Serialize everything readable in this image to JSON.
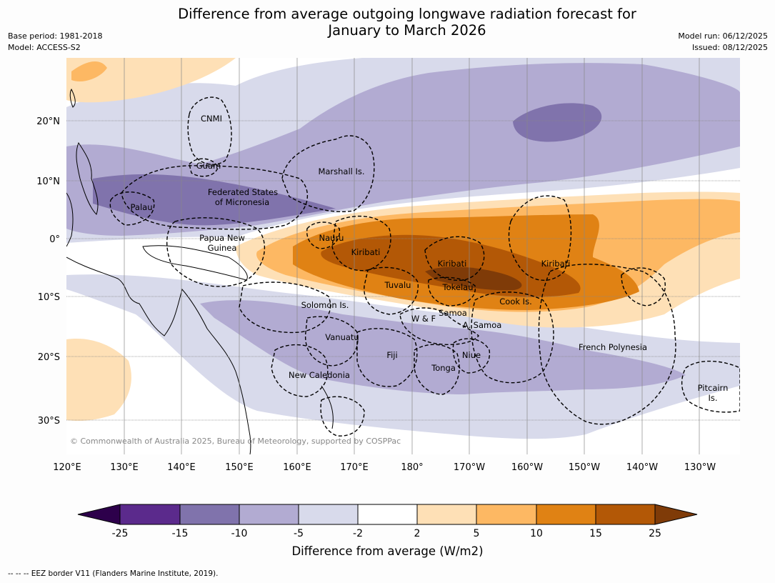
{
  "title": {
    "line1": "Difference from average outgoing longwave radiation forecast for",
    "line2": "January to March 2026"
  },
  "meta": {
    "base_period": "Base period: 1981-2018",
    "model": "Model: ACCESS-S2",
    "model_run": "Model run: 06/12/2025",
    "issued": "Issued: 08/12/2025"
  },
  "map": {
    "lon_labels": [
      "120°E",
      "130°E",
      "140°E",
      "150°E",
      "160°E",
      "170°E",
      "180°",
      "170°W",
      "160°W",
      "150°W",
      "140°W",
      "130°W"
    ],
    "lat_labels": [
      "20°N",
      "10°N",
      "0°",
      "10°S",
      "20°S",
      "30°S"
    ],
    "regions": [
      "CNMI",
      "Guam",
      "Marshall Is.",
      "Federated States",
      "of Micronesia",
      "Palau",
      "Papua New",
      "Guinea",
      "Nauru",
      "Kiribati",
      "Kiribati",
      "Kiribati",
      "Tuvalu",
      "Tokelau",
      "Cook Is.",
      "Solomon Is.",
      "W & F",
      "Samoa",
      "A. Samoa",
      "Vanuatu",
      "Fiji",
      "Niue",
      "Tonga",
      "New Caledonia",
      "French Polynesia",
      "Pitcairn",
      "Is."
    ],
    "copyright": "© Commonwealth of Australia 2025, Bureau of Meteorology, supported by COSPPac",
    "colors": {
      "ocean_land_bg": "#ffffff",
      "eez_border": "#000000",
      "grid": "#888888"
    }
  },
  "colorbar": {
    "ticks": [
      "-25",
      "-15",
      "-10",
      "-5",
      "-2",
      "2",
      "5",
      "10",
      "15",
      "25"
    ],
    "colors": [
      "#2d004b",
      "#5b2a8c",
      "#8073ac",
      "#b2abd2",
      "#d8daeb",
      "#ffffff",
      "#fee0b6",
      "#fdb863",
      "#e08214",
      "#b35806",
      "#7f3b08"
    ],
    "title": "Difference from average (W/m2)"
  },
  "footer": "--  --  -- EEZ border V11 (Flanders Marine Institute, 2019)."
}
